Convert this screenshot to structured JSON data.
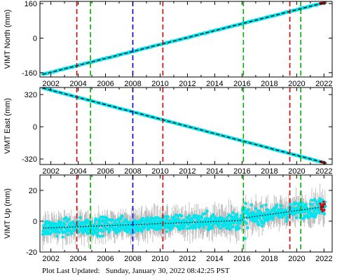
{
  "footer": {
    "label": "Plot Last Updated:",
    "timestamp": "Sunday, January 30, 2022 08:42:25 PST"
  },
  "colors": {
    "series": "#00e5ee",
    "trend": "#000000",
    "error_bars": "#b3b3b3",
    "recent_points": "#e00000",
    "event_red": "#e00000",
    "event_green": "#00b000",
    "event_blue": "#0000ee"
  },
  "chart_data": [
    {
      "type": "scatter",
      "ylabel": "VIMT North (mm)",
      "xlim": [
        2001.2,
        2022.6
      ],
      "ylim": [
        -180,
        170
      ],
      "yticks": [
        -160,
        0,
        160
      ],
      "xticks": [
        2002,
        2004,
        2006,
        2008,
        2010,
        2012,
        2014,
        2016,
        2018,
        2020,
        2022
      ],
      "show_x_tick_labels": true,
      "series": [
        {
          "trend": {
            "x": [
              2001.4,
              2022.1
            ],
            "y": [
              -168,
              165
            ]
          },
          "scatter_band_mm": 5
        }
      ]
    },
    {
      "type": "scatter",
      "ylabel": "VIMT East (mm)",
      "xlim": [
        2001.2,
        2022.6
      ],
      "ylim": [
        -375,
        390
      ],
      "yticks": [
        -320,
        0,
        320
      ],
      "xticks": [
        2002,
        2004,
        2006,
        2008,
        2010,
        2012,
        2014,
        2016,
        2018,
        2020,
        2022
      ],
      "show_x_tick_labels": true,
      "series": [
        {
          "trend": {
            "x": [
              2001.4,
              2022.1
            ],
            "y": [
              385,
              -360
            ]
          },
          "scatter_band_mm": 6
        }
      ]
    },
    {
      "type": "scatter",
      "ylabel": "VIMT Up (mm)",
      "xlim": [
        2001.2,
        2022.6
      ],
      "ylim": [
        -20,
        30
      ],
      "yticks": [
        -20,
        0,
        20
      ],
      "xticks": [
        2002,
        2004,
        2006,
        2008,
        2010,
        2012,
        2014,
        2016,
        2018,
        2020,
        2022
      ],
      "show_x_tick_labels": true,
      "series": [
        {
          "trend": {
            "x": [
              2001.4,
              2016.0,
              2016.1,
              2022.1
            ],
            "y": [
              -4.5,
              0.5,
              2.0,
              9.5
            ]
          },
          "scatter_band_mm": 7,
          "error_bar_mm": 7
        }
      ]
    }
  ],
  "event_lines": [
    {
      "x": 2003.9,
      "color": "red"
    },
    {
      "x": 2004.9,
      "color": "green"
    },
    {
      "x": 2008.0,
      "color": "blue"
    },
    {
      "x": 2010.2,
      "color": "red"
    },
    {
      "x": 2016.1,
      "color": "green"
    },
    {
      "x": 2019.5,
      "color": "red"
    },
    {
      "x": 2020.3,
      "color": "green"
    }
  ]
}
